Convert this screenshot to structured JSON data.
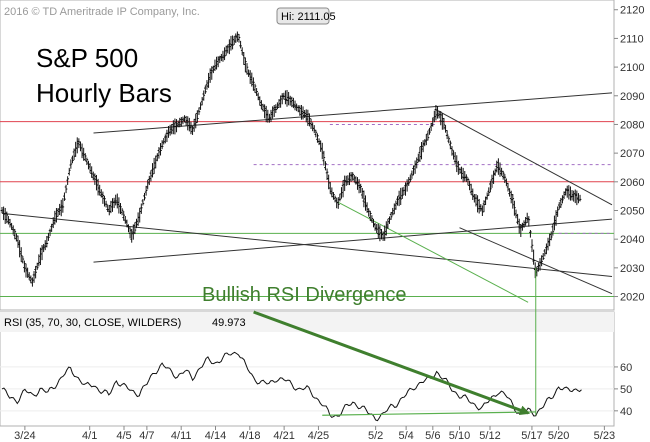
{
  "chart_data": [
    {
      "type": "ohlc",
      "title_lines": [
        "S&P 500",
        "Hourly Bars"
      ],
      "copyright": "2016 © TD Ameritrade IP Company, Inc.",
      "ylim": [
        2016,
        2122
      ],
      "y_ticks": [
        2020,
        2030,
        2040,
        2050,
        2060,
        2070,
        2080,
        2090,
        2100,
        2110,
        2120
      ],
      "x_ticks": [
        "3/24",
        "4/1",
        "4/5",
        "4/7",
        "4/11",
        "4/14",
        "4/18",
        "4/21",
        "4/25",
        "5/2",
        "5/4",
        "5/6",
        "5/10",
        "5/12",
        "5/17",
        "5/20",
        "5/23"
      ],
      "high_label": "Hi: 2111.05",
      "high_value": 2111.05,
      "annotation": "Bullish RSI Divergence",
      "price_path": [
        [
          0,
          2050
        ],
        [
          2,
          2046
        ],
        [
          4,
          2040
        ],
        [
          6,
          2030
        ],
        [
          8,
          2025
        ],
        [
          10,
          2034
        ],
        [
          12,
          2040
        ],
        [
          14,
          2048
        ],
        [
          16,
          2052
        ],
        [
          18,
          2066
        ],
        [
          20,
          2074
        ],
        [
          22,
          2068
        ],
        [
          24,
          2062
        ],
        [
          26,
          2056
        ],
        [
          28,
          2050
        ],
        [
          30,
          2054
        ],
        [
          32,
          2048
        ],
        [
          34,
          2041
        ],
        [
          36,
          2048
        ],
        [
          38,
          2058
        ],
        [
          40,
          2066
        ],
        [
          42,
          2073
        ],
        [
          44,
          2078
        ],
        [
          46,
          2080
        ],
        [
          48,
          2082
        ],
        [
          50,
          2078
        ],
        [
          52,
          2086
        ],
        [
          54,
          2095
        ],
        [
          56,
          2101
        ],
        [
          58,
          2104
        ],
        [
          60,
          2108
        ],
        [
          62,
          2111.05
        ],
        [
          64,
          2100
        ],
        [
          66,
          2094
        ],
        [
          68,
          2087
        ],
        [
          70,
          2082
        ],
        [
          72,
          2086
        ],
        [
          74,
          2090
        ],
        [
          76,
          2088
        ],
        [
          78,
          2085
        ],
        [
          80,
          2083
        ],
        [
          82,
          2078
        ],
        [
          84,
          2071
        ],
        [
          86,
          2058
        ],
        [
          88,
          2052
        ],
        [
          90,
          2060
        ],
        [
          92,
          2062
        ],
        [
          94,
          2058
        ],
        [
          96,
          2050
        ],
        [
          98,
          2044
        ],
        [
          100,
          2041
        ],
        [
          102,
          2048
        ],
        [
          104,
          2054
        ],
        [
          106,
          2058
        ],
        [
          108,
          2064
        ],
        [
          110,
          2071
        ],
        [
          112,
          2077
        ],
        [
          114,
          2085
        ],
        [
          116,
          2080
        ],
        [
          118,
          2071
        ],
        [
          120,
          2064
        ],
        [
          122,
          2061
        ],
        [
          124,
          2054
        ],
        [
          126,
          2050
        ],
        [
          128,
          2058
        ],
        [
          130,
          2066
        ],
        [
          132,
          2061
        ],
        [
          134,
          2053
        ],
        [
          136,
          2043
        ],
        [
          138,
          2048
        ],
        [
          140,
          2028
        ],
        [
          142,
          2034
        ],
        [
          144,
          2041
        ],
        [
          146,
          2051
        ],
        [
          148,
          2057
        ],
        [
          150,
          2055
        ],
        [
          152,
          2054
        ]
      ],
      "horizontal_lines": [
        {
          "y": 2081,
          "color": "#e0434f"
        },
        {
          "y": 2060,
          "color": "#e0434f"
        },
        {
          "y": 2042,
          "color": "#5ab04e"
        },
        {
          "y": 2020,
          "color": "#5ab04e"
        }
      ],
      "dashed_levels": [
        {
          "y": 2066,
          "x0": 66,
          "x1": 160
        },
        {
          "y": 2080,
          "x0": 86,
          "x1": 114
        },
        {
          "y": 2042,
          "x0": 146,
          "x1": 160
        }
      ],
      "trendlines": [
        {
          "x0": 0,
          "y0": 2049,
          "x1": 160,
          "y1": 2027,
          "color": "#333333"
        },
        {
          "x0": 24,
          "y0": 2077,
          "x1": 160,
          "y1": 2091,
          "color": "#333333"
        },
        {
          "x0": 24,
          "y0": 2032,
          "x1": 160,
          "y1": 2047,
          "color": "#333333"
        },
        {
          "x0": 114,
          "y0": 2085,
          "x1": 160,
          "y1": 2052,
          "color": "#333333"
        },
        {
          "x0": 120,
          "y0": 2044,
          "x1": 160,
          "y1": 2021,
          "color": "#333333"
        },
        {
          "x0": 88,
          "y0": 2053,
          "x1": 138,
          "y1": 2018,
          "color": "#5ab04e"
        }
      ]
    },
    {
      "type": "line",
      "label": "RSI (35, 70, 30, CLOSE, WILDERS)",
      "last_value_label": "49.973",
      "ylim": [
        34,
        75
      ],
      "y_ticks": [
        40,
        50,
        60
      ],
      "values": [
        [
          0,
          50
        ],
        [
          2,
          46
        ],
        [
          4,
          45
        ],
        [
          6,
          49
        ],
        [
          8,
          47
        ],
        [
          10,
          50
        ],
        [
          12,
          48
        ],
        [
          14,
          52
        ],
        [
          16,
          56
        ],
        [
          18,
          59
        ],
        [
          20,
          55
        ],
        [
          22,
          51
        ],
        [
          24,
          52
        ],
        [
          26,
          49
        ],
        [
          28,
          47
        ],
        [
          30,
          54
        ],
        [
          32,
          51
        ],
        [
          34,
          49
        ],
        [
          36,
          48
        ],
        [
          38,
          52
        ],
        [
          40,
          58
        ],
        [
          42,
          61
        ],
        [
          44,
          58
        ],
        [
          46,
          56
        ],
        [
          48,
          58
        ],
        [
          50,
          55
        ],
        [
          52,
          60
        ],
        [
          54,
          63
        ],
        [
          56,
          62
        ],
        [
          58,
          64
        ],
        [
          60,
          66
        ],
        [
          62,
          67
        ],
        [
          64,
          60
        ],
        [
          66,
          55
        ],
        [
          68,
          53
        ],
        [
          70,
          52
        ],
        [
          72,
          55
        ],
        [
          74,
          54
        ],
        [
          76,
          52
        ],
        [
          78,
          50
        ],
        [
          80,
          50
        ],
        [
          82,
          47
        ],
        [
          84,
          43
        ],
        [
          86,
          38
        ],
        [
          88,
          38
        ],
        [
          90,
          41
        ],
        [
          92,
          44
        ],
        [
          94,
          42
        ],
        [
          96,
          39
        ],
        [
          98,
          37
        ],
        [
          100,
          38
        ],
        [
          102,
          42
        ],
        [
          104,
          44
        ],
        [
          106,
          47
        ],
        [
          108,
          51
        ],
        [
          110,
          53
        ],
        [
          112,
          54
        ],
        [
          114,
          58
        ],
        [
          116,
          54
        ],
        [
          118,
          50
        ],
        [
          120,
          47
        ],
        [
          122,
          45
        ],
        [
          124,
          43
        ],
        [
          126,
          41
        ],
        [
          128,
          45
        ],
        [
          130,
          49
        ],
        [
          132,
          47
        ],
        [
          134,
          43
        ],
        [
          136,
          38
        ],
        [
          138,
          40
        ],
        [
          140,
          39
        ],
        [
          142,
          42
        ],
        [
          144,
          46
        ],
        [
          146,
          51
        ],
        [
          148,
          49
        ],
        [
          150,
          50
        ],
        [
          152,
          50
        ]
      ],
      "divergence_line": {
        "x0": 84,
        "y0": 38,
        "x1": 140,
        "y1": 39.5
      },
      "annotation_arrow": {
        "from_price_panel_x": 66,
        "to_rsi_x": 138,
        "to_rsi_y": 39
      }
    }
  ]
}
